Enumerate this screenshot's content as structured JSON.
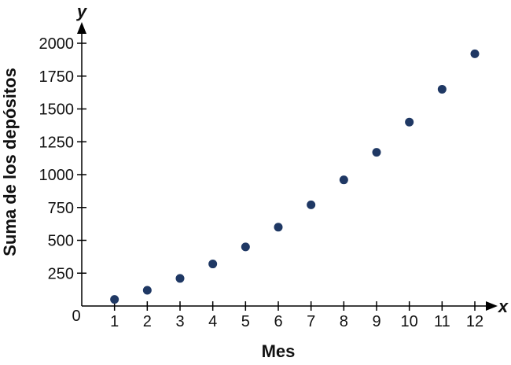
{
  "chart_data": {
    "type": "scatter",
    "title": "",
    "xlabel": "Mes",
    "ylabel": "Suma de los depósitos",
    "x_axis_var": "x",
    "y_axis_var": "y",
    "origin_label": "0",
    "xlim": [
      0,
      12
    ],
    "ylim": [
      0,
      2000
    ],
    "x_ticks": [
      1,
      2,
      3,
      4,
      5,
      6,
      7,
      8,
      9,
      10,
      11,
      12
    ],
    "y_ticks": [
      250,
      500,
      750,
      1000,
      1250,
      1500,
      1750,
      2000
    ],
    "grid": false,
    "series": [
      {
        "x": [
          1,
          2,
          3,
          4,
          5,
          6,
          7,
          8,
          9,
          10,
          11,
          12
        ],
        "values": [
          50,
          120,
          210,
          320,
          450,
          600,
          770,
          960,
          1170,
          1400,
          1650,
          1920
        ]
      }
    ],
    "point_color": "#1f3864"
  }
}
